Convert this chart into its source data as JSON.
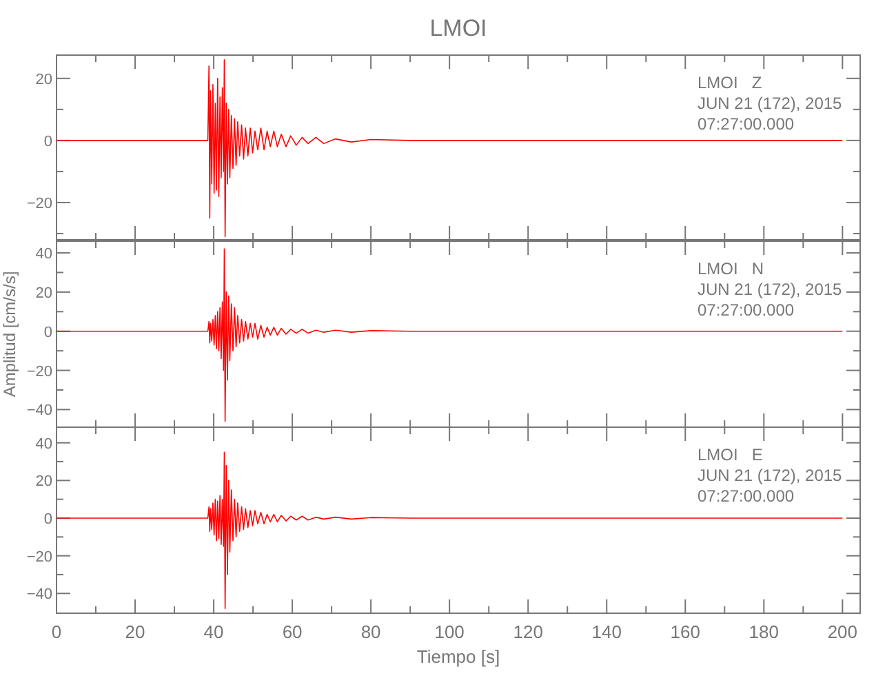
{
  "chart_data": [
    {
      "type": "line",
      "title": "LMOI",
      "annotations": [
        "LMOI   Z",
        "JUN 21 (172), 2015",
        "07:27:00.000"
      ],
      "tick_labels": "y",
      "x": [
        0,
        38.5,
        38.8,
        39.0,
        39.2,
        39.5,
        39.8,
        40.1,
        40.4,
        40.7,
        41.0,
        41.3,
        41.6,
        41.9,
        42.2,
        42.5,
        42.7,
        42.9,
        43.2,
        43.5,
        43.8,
        44.1,
        44.5,
        44.9,
        45.3,
        45.7,
        46.1,
        46.6,
        47.1,
        47.6,
        48.1,
        48.7,
        49.3,
        49.9,
        50.5,
        51.2,
        52,
        52.8,
        53.6,
        54.4,
        55.3,
        56.2,
        57.2,
        58.4,
        59.6,
        61,
        62.5,
        64,
        66,
        68,
        71,
        75,
        80,
        90,
        200
      ],
      "series": [
        {
          "color": "#ff0000",
          "values": [
            0,
            0,
            24,
            -25,
            16,
            -14,
            18,
            -17,
            12,
            -16,
            20,
            -18,
            14,
            -12,
            17,
            -10,
            26,
            -31,
            12,
            -14,
            10,
            -12,
            8,
            -9,
            7,
            -8,
            6,
            -5,
            5,
            -6,
            4,
            -5,
            4,
            -4,
            3,
            -3,
            4,
            -3,
            3,
            -2,
            3,
            -2,
            2,
            -2,
            1.5,
            -1.5,
            1,
            -1,
            1,
            -1,
            0.5,
            -0.5,
            0.3,
            0,
            0
          ]
        }
      ],
      "xlim": [
        0,
        204.5
      ],
      "xticks": [
        0,
        {
          "value": 10,
          "label": null
        },
        20,
        {
          "value": 30,
          "label": null
        },
        40,
        {
          "value": 50,
          "label": null
        },
        60,
        {
          "value": 70,
          "label": null
        },
        80,
        {
          "value": 90,
          "label": null
        },
        100,
        {
          "value": 110,
          "label": null
        },
        120,
        {
          "value": 130,
          "label": null
        },
        140,
        {
          "value": 150,
          "label": null
        },
        160,
        {
          "value": 170,
          "label": null
        },
        180,
        {
          "value": 190,
          "label": null
        },
        200
      ],
      "ylim": [
        -32,
        27.5
      ],
      "yticks": [
        {
          "value": -30,
          "label": null
        },
        -20,
        {
          "value": -10,
          "label": null
        },
        0,
        {
          "value": 10,
          "label": null
        },
        20
      ]
    },
    {
      "type": "line",
      "ylabel": "Amplitud [cm/s/s]",
      "annotations": [
        "LMOI   N",
        "JUN 21 (172), 2015",
        "07:27:00.000"
      ],
      "tick_labels": "y",
      "x": [
        0,
        38.5,
        38.8,
        39.0,
        39.2,
        39.5,
        39.8,
        40.1,
        40.4,
        40.7,
        41.0,
        41.3,
        41.6,
        41.9,
        42.2,
        42.5,
        42.7,
        42.9,
        43.2,
        43.5,
        43.8,
        44.1,
        44.5,
        44.9,
        45.3,
        45.7,
        46.1,
        46.6,
        47.1,
        47.6,
        48.1,
        48.7,
        49.3,
        49.9,
        50.5,
        51.2,
        52,
        52.8,
        53.6,
        54.4,
        55.3,
        56.2,
        57.2,
        58.4,
        59.6,
        61,
        62.5,
        64,
        66,
        68,
        71,
        75,
        80,
        90,
        200
      ],
      "series": [
        {
          "color": "#ff0000",
          "values": [
            0,
            0,
            5,
            -6,
            4,
            -5,
            6,
            -7,
            8,
            -9,
            10,
            -10,
            12,
            -14,
            15,
            -20,
            42,
            -46,
            20,
            -25,
            18,
            -15,
            14,
            -10,
            12,
            -8,
            8,
            -6,
            6,
            -5,
            5,
            -4,
            4,
            -3,
            4,
            -4,
            3,
            -3,
            2,
            -2,
            2,
            -2,
            1.5,
            -1.5,
            1,
            -1,
            1,
            -1,
            0.5,
            -0.5,
            0.5,
            -0.5,
            0.3,
            0,
            0
          ]
        }
      ],
      "xlim": [
        0,
        204.5
      ],
      "xticks": [
        0,
        {
          "value": 10,
          "label": null
        },
        20,
        {
          "value": 30,
          "label": null
        },
        40,
        {
          "value": 50,
          "label": null
        },
        60,
        {
          "value": 70,
          "label": null
        },
        80,
        {
          "value": 90,
          "label": null
        },
        100,
        {
          "value": 110,
          "label": null
        },
        120,
        {
          "value": 130,
          "label": null
        },
        140,
        {
          "value": 150,
          "label": null
        },
        160,
        {
          "value": 170,
          "label": null
        },
        180,
        {
          "value": 190,
          "label": null
        },
        200
      ],
      "ylim": [
        -49,
        46
      ],
      "yticks": [
        -40,
        {
          "value": -30,
          "label": null
        },
        -20,
        {
          "value": -10,
          "label": null
        },
        0,
        {
          "value": 10,
          "label": null
        },
        20,
        {
          "value": 30,
          "label": null
        },
        40
      ]
    },
    {
      "type": "line",
      "xlabel": "Tiempo [s]",
      "annotations": [
        "LMOI   E",
        "JUN 21 (172), 2015",
        "07:27:00.000"
      ],
      "x": [
        0,
        38.5,
        38.8,
        39.0,
        39.2,
        39.5,
        39.8,
        40.1,
        40.4,
        40.7,
        41.0,
        41.3,
        41.6,
        41.9,
        42.2,
        42.5,
        42.7,
        42.9,
        43.2,
        43.5,
        43.8,
        44.1,
        44.5,
        44.9,
        45.3,
        45.7,
        46.1,
        46.6,
        47.1,
        47.6,
        48.1,
        48.7,
        49.3,
        49.9,
        50.5,
        51.2,
        52,
        52.8,
        53.6,
        54.4,
        55.3,
        56.2,
        57.2,
        58.4,
        59.6,
        61,
        62.5,
        64,
        66,
        68,
        71,
        75,
        80,
        90,
        200
      ],
      "series": [
        {
          "color": "#ff0000",
          "values": [
            0,
            0,
            6,
            -7,
            5,
            -6,
            8,
            -9,
            10,
            -12,
            9,
            -11,
            12,
            -14,
            10,
            -15,
            35,
            -48,
            28,
            -30,
            20,
            -18,
            15,
            -12,
            10,
            -10,
            8,
            -7,
            6,
            -6,
            5,
            -5,
            4,
            -4,
            4,
            -3,
            3,
            -3,
            2,
            -2,
            2,
            -2,
            1.5,
            -1.5,
            1,
            -1,
            1,
            -1,
            0.5,
            -0.5,
            0.5,
            -0.5,
            0.3,
            0,
            0
          ]
        }
      ],
      "xlim": [
        0,
        204.5
      ],
      "xticks": [
        0,
        {
          "value": 10,
          "label": null
        },
        20,
        {
          "value": 30,
          "label": null
        },
        40,
        {
          "value": 50,
          "label": null
        },
        60,
        {
          "value": 70,
          "label": null
        },
        80,
        {
          "value": 90,
          "label": null
        },
        100,
        {
          "value": 110,
          "label": null
        },
        120,
        {
          "value": 130,
          "label": null
        },
        140,
        {
          "value": 150,
          "label": null
        },
        160,
        {
          "value": 170,
          "label": null
        },
        180,
        {
          "value": 190,
          "label": null
        },
        200
      ],
      "ylim": [
        -50.5,
        48.3
      ],
      "yticks": [
        -40,
        {
          "value": -30,
          "label": null
        },
        -20,
        {
          "value": -10,
          "label": null
        },
        0,
        {
          "value": 10,
          "label": null
        },
        20,
        {
          "value": 30,
          "label": null
        },
        40
      ]
    }
  ]
}
